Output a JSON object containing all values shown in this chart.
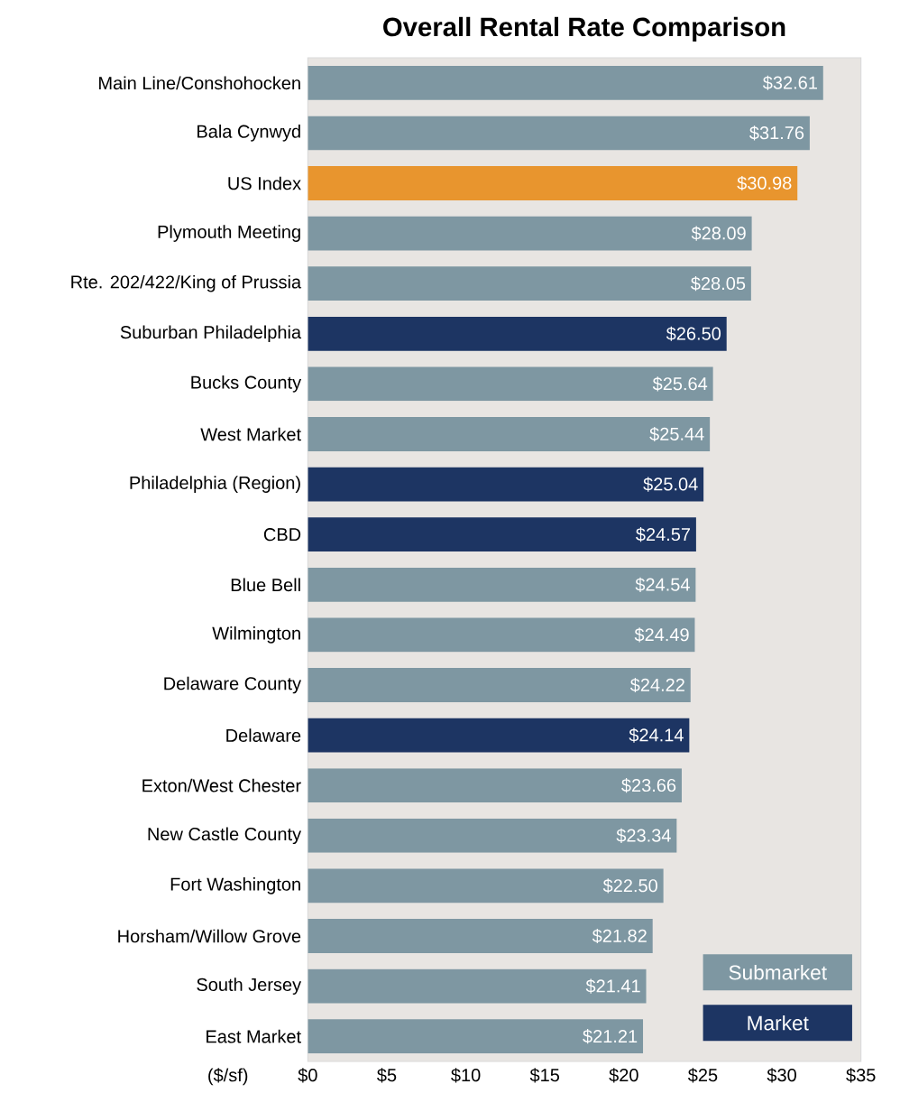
{
  "chart_data": {
    "type": "bar",
    "orientation": "horizontal",
    "title": "Overall Rental Rate Comparison",
    "xlabel": "($/sf)",
    "categories": [
      "Main Line/Conshohocken",
      "Bala Cynwyd",
      "US Index",
      "Plymouth Meeting",
      "Rte. 202/422/King of Prussia",
      "Suburban Philadelphia",
      "Bucks County",
      "West Market",
      "Philadelphia (Region)",
      "CBD",
      "Blue Bell",
      "Wilmington",
      "Delaware County",
      "Delaware",
      "Exton/West Chester",
      "New Castle County",
      "Fort Washington",
      "Horsham/Willow Grove",
      "South Jersey",
      "East Market"
    ],
    "series": [
      {
        "name": "Submarket",
        "color": "#7e97a2",
        "values": [
          32.61,
          31.76,
          null,
          28.09,
          28.05,
          null,
          25.64,
          25.44,
          null,
          null,
          24.54,
          24.49,
          24.22,
          null,
          23.66,
          23.34,
          22.5,
          21.82,
          21.41,
          21.21
        ],
        "value_labels": [
          "$32.61",
          "$31.76",
          null,
          "$28.09",
          "$28.05",
          null,
          "$25.64",
          "$25.44",
          null,
          null,
          "$24.54",
          "$24.49",
          "$24.22",
          null,
          "$23.66",
          "$23.34",
          "$22.50",
          "$21.82",
          "$21.41",
          "$21.21"
        ]
      },
      {
        "name": "Market",
        "color": "#1d3563",
        "values": [
          null,
          null,
          null,
          null,
          null,
          26.5,
          null,
          null,
          25.04,
          24.57,
          null,
          null,
          null,
          24.14,
          null,
          null,
          null,
          null,
          null,
          null
        ],
        "value_labels": [
          null,
          null,
          null,
          null,
          null,
          "$26.50",
          null,
          null,
          "$25.04",
          "$24.57",
          null,
          null,
          null,
          "$24.14",
          null,
          null,
          null,
          null,
          null,
          null
        ]
      },
      {
        "color": "#e8952e",
        "values": [
          null,
          null,
          30.98,
          null,
          null,
          null,
          null,
          null,
          null,
          null,
          null,
          null,
          null,
          null,
          null,
          null,
          null,
          null,
          null,
          null
        ],
        "value_labels": [
          null,
          null,
          "$30.98",
          null,
          null,
          null,
          null,
          null,
          null,
          null,
          null,
          null,
          null,
          null,
          null,
          null,
          null,
          null,
          null,
          null
        ]
      }
    ],
    "xlim": [
      0,
      35
    ],
    "xticks": [
      {
        "value": 0,
        "label": "$0"
      },
      {
        "value": 5,
        "label": "$5"
      },
      {
        "value": 10,
        "label": "$10"
      },
      {
        "value": 15,
        "label": "$15"
      },
      {
        "value": 20,
        "label": "$20"
      },
      {
        "value": 25,
        "label": "$25"
      },
      {
        "value": 30,
        "label": "$30"
      },
      {
        "value": 35,
        "label": "$35"
      }
    ],
    "legend": "bottom right"
  }
}
